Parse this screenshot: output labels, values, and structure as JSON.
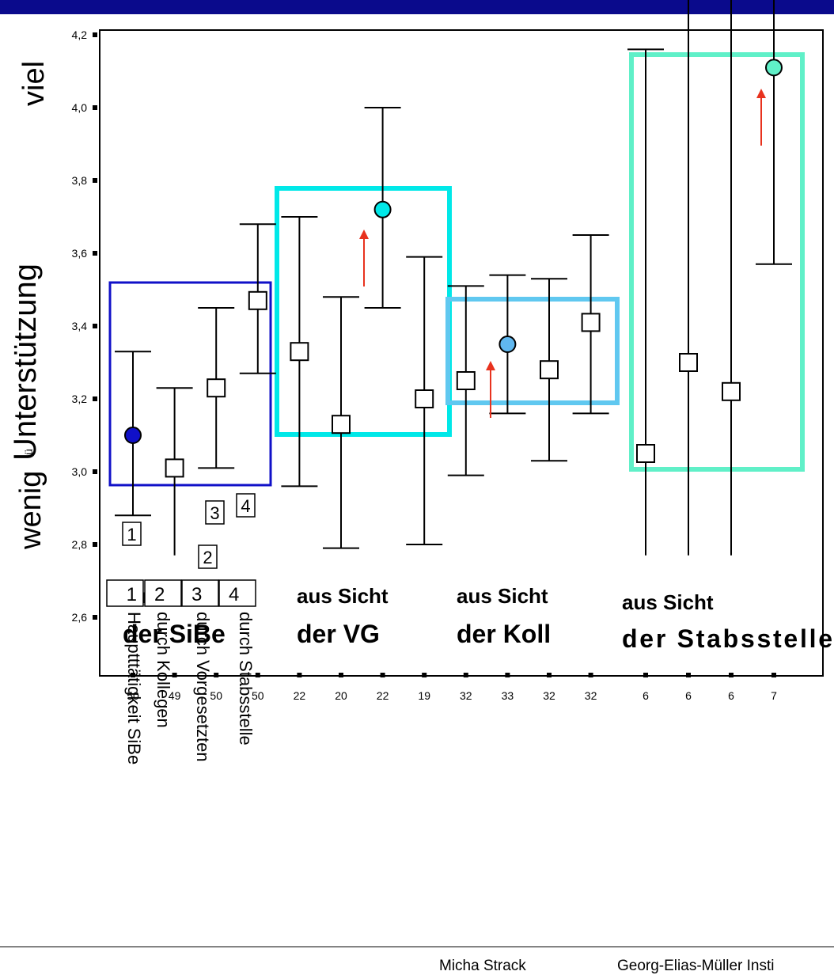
{
  "chart_data": {
    "type": "errorbar",
    "ylabel": "Unterstützung",
    "ylabel_low": "wenig",
    "ylabel_high": "viel",
    "ylabel_stray": "ü",
    "ylim": [
      2.5,
      4.2
    ],
    "yticks": [
      "2,6",
      "2,8",
      "3,0",
      "3,2",
      "3,4",
      "3,6",
      "3,8",
      "4,0",
      "4,2"
    ],
    "groups": [
      {
        "line1": "aus Sicht",
        "line2": "der SiBe",
        "box_color": "#1010c8"
      },
      {
        "line1": "aus Sicht",
        "line2": "der VG",
        "box_color": "#00e8e8"
      },
      {
        "line1": "aus Sicht",
        "line2": "der Koll",
        "box_color": "#60c8f0"
      },
      {
        "line1": "aus Sicht",
        "line2": "der Stabsstelle",
        "box_color": "#60f0c8"
      }
    ],
    "points": [
      {
        "group": 0,
        "n": "50",
        "mean": 3.1,
        "low": 2.88,
        "high": 3.33,
        "marker": "circle",
        "color": "#1010c8",
        "label": "1"
      },
      {
        "group": 0,
        "n": "49",
        "mean": 3.01,
        "low": 2.77,
        "high": 3.23,
        "marker": "square",
        "label": "2"
      },
      {
        "group": 0,
        "n": "50",
        "mean": 3.23,
        "low": 3.01,
        "high": 3.45,
        "marker": "square",
        "label": "3"
      },
      {
        "group": 0,
        "n": "50",
        "mean": 3.47,
        "low": 3.27,
        "high": 3.68,
        "marker": "square",
        "label": "4"
      },
      {
        "group": 1,
        "n": "22",
        "mean": 3.33,
        "low": 2.96,
        "high": 3.7,
        "marker": "square"
      },
      {
        "group": 1,
        "n": "20",
        "mean": 3.13,
        "low": 2.79,
        "high": 3.48,
        "marker": "square"
      },
      {
        "group": 1,
        "n": "22",
        "mean": 3.72,
        "low": 3.45,
        "high": 4.0,
        "marker": "circle",
        "color": "#00e8e8",
        "arrow": true
      },
      {
        "group": 1,
        "n": "19",
        "mean": 3.2,
        "low": 2.8,
        "high": 3.59,
        "marker": "square"
      },
      {
        "group": 2,
        "n": "32",
        "mean": 3.25,
        "low": 2.99,
        "high": 3.51,
        "marker": "square"
      },
      {
        "group": 2,
        "n": "33",
        "mean": 3.35,
        "low": 3.16,
        "high": 3.54,
        "marker": "circle",
        "color": "#60b8f0",
        "arrow": true
      },
      {
        "group": 2,
        "n": "32",
        "mean": 3.28,
        "low": 3.03,
        "high": 3.53,
        "marker": "square"
      },
      {
        "group": 2,
        "n": "32",
        "mean": 3.41,
        "low": 3.16,
        "high": 3.65,
        "marker": "square"
      },
      {
        "group": 3,
        "n": "6",
        "mean": 3.05,
        "low": 2.77,
        "high": 4.16,
        "marker": "square"
      },
      {
        "group": 3,
        "n": "6",
        "mean": 3.3,
        "low": 2.77,
        "high": 4.48,
        "marker": "square"
      },
      {
        "group": 3,
        "n": "6",
        "mean": 3.22,
        "low": 2.77,
        "high": 4.48,
        "marker": "square"
      },
      {
        "group": 3,
        "n": "7",
        "mean": 4.11,
        "low": 3.57,
        "high": 4.48,
        "marker": "circle",
        "color": "#60f0c8",
        "arrow": true
      }
    ],
    "legend": [
      {
        "num": "1",
        "text": "Hauptttätigkeit SiBe"
      },
      {
        "num": "2",
        "text": "durch Kollegen"
      },
      {
        "num": "3",
        "text": "durch Vorgesetzten"
      },
      {
        "num": "4",
        "text": "durch Stabsstelle"
      }
    ]
  },
  "footer": {
    "author": "Micha Strack",
    "institute": "Georg-Elias-Müller Insti"
  }
}
